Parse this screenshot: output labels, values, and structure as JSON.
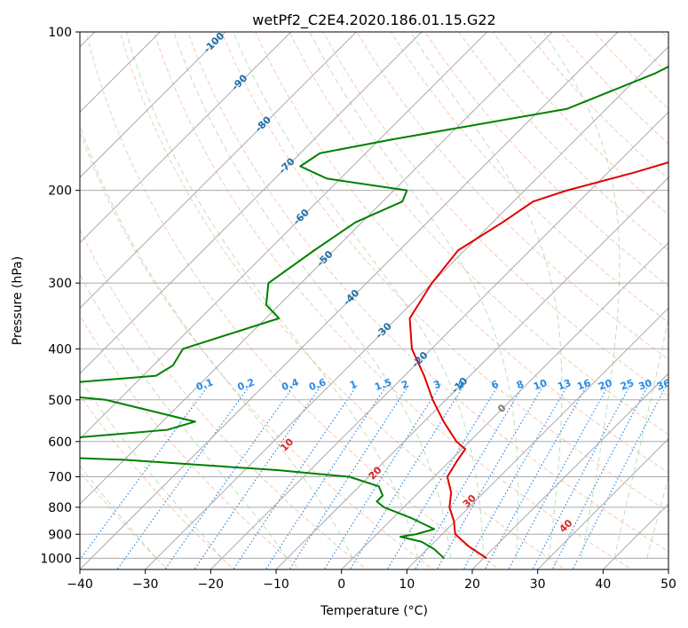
{
  "chart_data": {
    "type": "line",
    "title": "wetPf2_C2E4.2020.186.01.15.G22",
    "xlabel": "Temperature (°C)",
    "ylabel": "Pressure (hPa)",
    "xlim": [
      -40,
      50
    ],
    "ylim": [
      1050,
      100
    ],
    "y_scale": "log",
    "skew_degrees": 45,
    "x_ticks": [
      -40,
      -30,
      -20,
      -10,
      0,
      10,
      20,
      30,
      40,
      50
    ],
    "x_tick_labels": [
      "−40",
      "−30",
      "−20",
      "−10",
      "0",
      "10",
      "20",
      "30",
      "40",
      "50"
    ],
    "y_ticks": [
      1000,
      900,
      800,
      700,
      600,
      500,
      400,
      300,
      200,
      100
    ],
    "y_tick_labels": [
      "1000",
      "900",
      "800",
      "700",
      "600",
      "500",
      "400",
      "300",
      "200",
      "100"
    ],
    "grid": true,
    "colors": {
      "temperature": "#e00000",
      "dewpoint": "#008000",
      "isotherm": "#aaaaaa",
      "dry_adiabat": "#f4a582",
      "moist_adiabat": "#7fbf7f",
      "mixing_ratio": "#2a8ae6",
      "isotherm_label": "#1f6fa8",
      "dry_adiabat_label": "#d62728"
    },
    "series": [
      {
        "role": "temperature",
        "points": [
          [
            100,
            -13.5
          ],
          [
            115,
            -6
          ],
          [
            130,
            -4
          ],
          [
            150,
            -5
          ],
          [
            170,
            -9
          ],
          [
            185,
            -16
          ],
          [
            200,
            -23.5
          ],
          [
            210,
            -27
          ],
          [
            230,
            -28.5
          ],
          [
            260,
            -31
          ],
          [
            300,
            -30
          ],
          [
            350,
            -28
          ],
          [
            400,
            -23
          ],
          [
            450,
            -17
          ],
          [
            500,
            -12
          ],
          [
            550,
            -7
          ],
          [
            600,
            -2
          ],
          [
            620,
            0.5
          ],
          [
            650,
            1
          ],
          [
            700,
            2
          ],
          [
            750,
            5
          ],
          [
            800,
            7
          ],
          [
            850,
            9.8
          ],
          [
            900,
            12
          ],
          [
            950,
            16
          ],
          [
            1000,
            20.5
          ]
        ]
      },
      {
        "role": "dewpoint",
        "points": [
          [
            100,
            -26
          ],
          [
            110,
            -25
          ],
          [
            120,
            -28
          ],
          [
            140,
            -36
          ],
          [
            160,
            -58
          ],
          [
            170,
            -67
          ],
          [
            180,
            -68
          ],
          [
            190,
            -62
          ],
          [
            200,
            -48
          ],
          [
            210,
            -47
          ],
          [
            230,
            -51
          ],
          [
            260,
            -53
          ],
          [
            300,
            -55
          ],
          [
            330,
            -52
          ],
          [
            350,
            -48
          ],
          [
            400,
            -58
          ],
          [
            430,
            -57
          ],
          [
            450,
            -58
          ],
          [
            470,
            -75
          ],
          [
            480,
            -78
          ],
          [
            490,
            -70
          ],
          [
            500,
            -62
          ],
          [
            550,
            -45
          ],
          [
            570,
            -48
          ],
          [
            600,
            -67
          ],
          [
            610,
            -78
          ],
          [
            630,
            -80
          ],
          [
            650,
            -50
          ],
          [
            680,
            -25
          ],
          [
            700,
            -13
          ],
          [
            730,
            -7
          ],
          [
            760,
            -5
          ],
          [
            780,
            -5
          ],
          [
            800,
            -3
          ],
          [
            840,
            3
          ],
          [
            880,
            8
          ],
          [
            900,
            6
          ],
          [
            910,
            4
          ],
          [
            930,
            8
          ],
          [
            960,
            11
          ],
          [
            1000,
            14
          ]
        ]
      }
    ],
    "isotherm_labels": [
      "-100",
      "-90",
      "-80",
      "-70",
      "-60",
      "-50",
      "-40",
      "-30",
      "-20",
      "-10",
      "0"
    ],
    "isotherm_label_values": [
      -100,
      -90,
      -80,
      -70,
      -60,
      -50,
      -40,
      -30,
      -20,
      -10,
      0
    ],
    "isotherm_label_pressures": [
      105,
      125,
      150,
      180,
      225,
      270,
      320,
      370,
      420,
      470,
      520
    ],
    "dry_adiabat_labels": [
      "10",
      "20",
      "30",
      "40"
    ],
    "dry_adiabat_label_values": [
      10,
      20,
      30,
      40
    ],
    "dry_adiabat_label_pressures": [
      610,
      690,
      780,
      870
    ],
    "mixing_ratio_labels": [
      "0.1",
      "0.2",
      "0.4",
      "0.6",
      "1",
      "1.5",
      "2",
      "3",
      "4",
      "6",
      "8",
      "10",
      "13",
      "16",
      "20",
      "25",
      "30",
      "36"
    ],
    "mixing_ratio_values": [
      0.1,
      0.2,
      0.4,
      0.6,
      1,
      1.5,
      2,
      3,
      4,
      6,
      8,
      10,
      13,
      16,
      20,
      25,
      30,
      36
    ],
    "mixing_ratio_label_pressure": 480,
    "dry_adiabat_thetas": [
      -30,
      -20,
      -10,
      0,
      10,
      20,
      30,
      40,
      50,
      60,
      70,
      80,
      90,
      100,
      110,
      120,
      130,
      140,
      150,
      160,
      170,
      180,
      190,
      200,
      210,
      220,
      230,
      240,
      250,
      260
    ],
    "moist_adiabat_starts": [
      -30,
      -20,
      -10,
      0,
      10,
      15,
      20,
      25,
      30,
      35,
      40,
      45
    ]
  }
}
